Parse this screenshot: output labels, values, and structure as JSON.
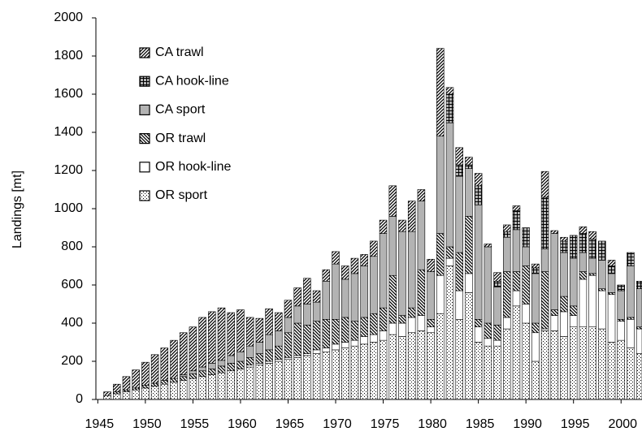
{
  "chart_data": {
    "type": "stacked-bar",
    "ylabel": "Landings  [mt]",
    "x": [
      1946,
      1947,
      1948,
      1949,
      1950,
      1951,
      1952,
      1953,
      1954,
      1955,
      1956,
      1957,
      1958,
      1959,
      1960,
      1961,
      1962,
      1963,
      1964,
      1965,
      1966,
      1967,
      1968,
      1969,
      1970,
      1971,
      1972,
      1973,
      1974,
      1975,
      1976,
      1977,
      1978,
      1979,
      1980,
      1981,
      1982,
      1983,
      1984,
      1985,
      1986,
      1987,
      1988,
      1989,
      1990,
      1991,
      1992,
      1993,
      1994,
      1995,
      1996,
      1997,
      1998,
      1999,
      2000,
      2001,
      2002
    ],
    "xlim": [
      1944.8,
      2002.2
    ],
    "xticks": [
      1945,
      1950,
      1955,
      1960,
      1965,
      1970,
      1975,
      1980,
      1985,
      1990,
      1995,
      2000
    ],
    "ylim": [
      0,
      2000
    ],
    "yticks": [
      0,
      200,
      400,
      600,
      800,
      1000,
      1200,
      1400,
      1600,
      1800,
      2000
    ],
    "grid": false,
    "legend": "upper left",
    "series": [
      {
        "name": "OR sport",
        "color": "#ffffff",
        "pattern": "dots",
        "values": [
          20,
          30,
          40,
          50,
          60,
          70,
          80,
          90,
          100,
          110,
          120,
          130,
          140,
          150,
          160,
          170,
          180,
          190,
          200,
          210,
          220,
          230,
          240,
          250,
          260,
          270,
          280,
          290,
          300,
          310,
          340,
          330,
          350,
          360,
          350,
          450,
          700,
          420,
          560,
          300,
          280,
          280,
          370,
          490,
          400,
          200,
          360,
          360,
          330,
          380,
          380,
          380,
          370,
          300,
          310,
          270,
          240
        ]
      },
      {
        "name": "OR hook-line",
        "color": "#ffffff",
        "pattern": "none",
        "values": [
          0,
          0,
          0,
          0,
          0,
          0,
          0,
          0,
          0,
          0,
          0,
          0,
          0,
          0,
          0,
          10,
          10,
          10,
          10,
          10,
          10,
          10,
          20,
          20,
          30,
          30,
          30,
          40,
          40,
          50,
          60,
          70,
          80,
          80,
          30,
          200,
          40,
          150,
          100,
          80,
          40,
          30,
          60,
          80,
          100,
          150,
          10,
          80,
          130,
          60,
          250,
          270,
          200,
          250,
          100,
          150,
          130
        ]
      },
      {
        "name": "OR trawl",
        "color": "#ffffff",
        "pattern": "back-diagonal",
        "values": [
          0,
          10,
          10,
          10,
          15,
          15,
          20,
          20,
          20,
          25,
          30,
          30,
          35,
          40,
          40,
          40,
          50,
          60,
          70,
          130,
          170,
          150,
          150,
          150,
          130,
          130,
          100,
          100,
          110,
          120,
          250,
          40,
          50,
          240,
          40,
          220,
          60,
          200,
          300,
          40,
          80,
          80,
          240,
          100,
          200,
          50,
          300,
          30,
          80,
          50,
          40,
          10,
          10,
          10,
          10,
          10,
          10
        ]
      },
      {
        "name": "CA sport",
        "color": "#b3b3b3",
        "pattern": "none",
        "values": [
          0,
          0,
          0,
          0,
          0,
          0,
          0,
          0,
          10,
          15,
          20,
          30,
          30,
          40,
          50,
          60,
          60,
          80,
          80,
          80,
          90,
          110,
          100,
          200,
          290,
          200,
          250,
          270,
          300,
          390,
          310,
          440,
          400,
          360,
          250,
          510,
          650,
          400,
          250,
          600,
          400,
          200,
          180,
          220,
          100,
          260,
          120,
          400,
          230,
          250,
          100,
          80,
          150,
          100,
          150,
          270,
          200
        ]
      },
      {
        "name": "CA hook-line",
        "color": "#b3b3b3",
        "pattern": "grid",
        "values": [
          0,
          0,
          0,
          0,
          0,
          0,
          0,
          0,
          0,
          0,
          0,
          0,
          0,
          0,
          0,
          0,
          0,
          0,
          0,
          0,
          0,
          0,
          0,
          0,
          0,
          0,
          0,
          0,
          0,
          0,
          0,
          0,
          0,
          0,
          0,
          0,
          150,
          60,
          20,
          100,
          0,
          30,
          30,
          100,
          100,
          30,
          270,
          0,
          60,
          120,
          100,
          100,
          100,
          40,
          30,
          70,
          40
        ]
      },
      {
        "name": "CA trawl",
        "color": "#ffffff",
        "pattern": "diagonal",
        "values": [
          20,
          40,
          70,
          95,
          120,
          150,
          170,
          200,
          220,
          230,
          260,
          270,
          275,
          225,
          220,
          150,
          125,
          135,
          95,
          90,
          95,
          135,
          60,
          60,
          65,
          70,
          80,
          60,
          80,
          70,
          160,
          60,
          160,
          60,
          65,
          460,
          35,
          90,
          40,
          65,
          15,
          45,
          35,
          25,
          0,
          20,
          135,
          15,
          20,
          0,
          35,
          40,
          0,
          30,
          0,
          0,
          0
        ]
      }
    ]
  }
}
